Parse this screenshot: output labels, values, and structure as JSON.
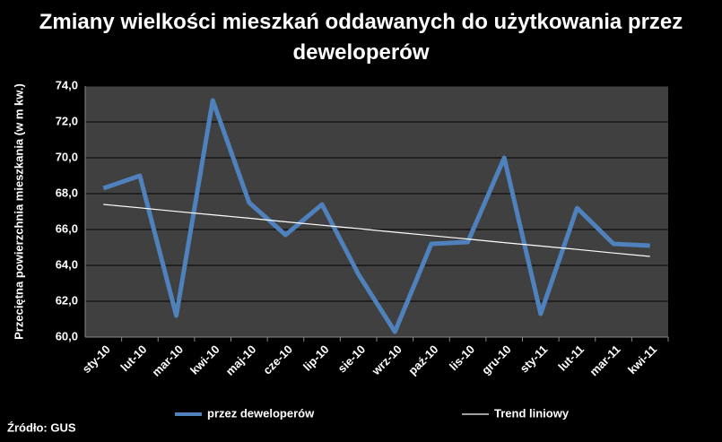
{
  "chart_data": {
    "type": "line",
    "title": "Zmiany wielkości mieszkań oddawanych do użytkowania przez deweloperów",
    "y_label": "Przeciętna powierzchnia mieszkania (w m kw.)",
    "source": "Źródło: GUS",
    "categories": [
      "sty-10",
      "lut-10",
      "mar-10",
      "kwi-10",
      "maj-10",
      "cze-10",
      "lip-10",
      "sie-10",
      "wrz-10",
      "paź-10",
      "lis-10",
      "gru-10",
      "sty-11",
      "lut-11",
      "mar-11",
      "kwi-11"
    ],
    "series": [
      {
        "name": "przez deweloperów",
        "color": "#4f81bd",
        "values": [
          68.3,
          69.0,
          61.2,
          73.2,
          67.5,
          65.7,
          67.4,
          63.5,
          60.3,
          65.2,
          65.3,
          70.0,
          61.3,
          67.2,
          65.2,
          65.1
        ]
      },
      {
        "name": "Trend liniowy",
        "color": "#ffffff",
        "values": [
          67.4,
          67.21,
          67.01,
          66.82,
          66.63,
          66.43,
          66.24,
          66.05,
          65.85,
          65.66,
          65.47,
          65.27,
          65.08,
          64.89,
          64.69,
          64.5
        ]
      }
    ],
    "ylim": [
      60,
      74
    ],
    "yticks": [
      {
        "value": 60,
        "label": "60,0"
      },
      {
        "value": 62,
        "label": "62,0"
      },
      {
        "value": 64,
        "label": "64,0"
      },
      {
        "value": 66,
        "label": "66,0"
      },
      {
        "value": 68,
        "label": "68,0"
      },
      {
        "value": 70,
        "label": "70,0"
      },
      {
        "value": 72,
        "label": "72,0"
      },
      {
        "value": 74,
        "label": "74,0"
      }
    ],
    "grid": true
  }
}
